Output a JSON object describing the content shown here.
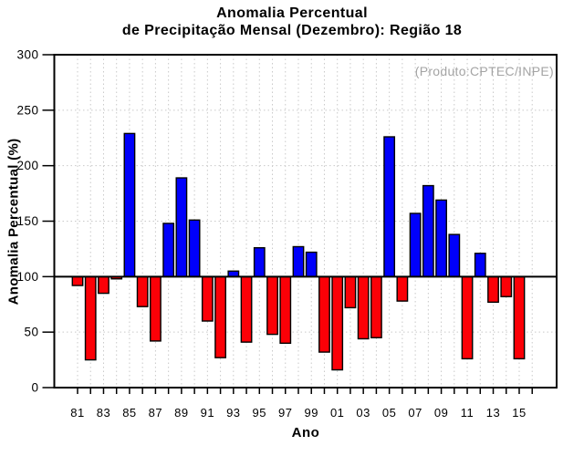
{
  "page": {
    "title_line1": "Anomalia Percentual",
    "title_line2": "de Precipitação Mensal (Dezembro): Região 18"
  },
  "chart_data": {
    "type": "bar",
    "title": "Anomalia Percentual de Precipitação Mensal (Dezembro): Região 18",
    "title_line1": "Anomalia Percentual",
    "title_line2": "de Precipitação Mensal (Dezembro): Região 18",
    "annotation": "(Produto:CPTEC/INPE)",
    "xlabel": "Ano",
    "ylabel": "Anomalia Percentual (%)",
    "ylim": [
      0,
      300
    ],
    "ytick_step": 50,
    "y_tick_labels": [
      "0",
      "50",
      "100",
      "150",
      "200",
      "250",
      "300"
    ],
    "baseline": 100,
    "grid": true,
    "legend": "none",
    "x_tick_labels": [
      "81",
      "83",
      "85",
      "87",
      "89",
      "91",
      "93",
      "95",
      "97",
      "99",
      "01",
      "03",
      "05",
      "07",
      "09",
      "11",
      "13",
      "15"
    ],
    "years": [
      "81",
      "82",
      "83",
      "84",
      "85",
      "86",
      "87",
      "88",
      "89",
      "90",
      "91",
      "92",
      "93",
      "94",
      "95",
      "96",
      "97",
      "98",
      "99",
      "00",
      "01",
      "02",
      "03",
      "04",
      "05",
      "06",
      "07",
      "08",
      "09",
      "10",
      "11",
      "12",
      "13",
      "14",
      "15"
    ],
    "values": [
      92,
      25,
      85,
      98,
      229,
      73,
      42,
      148,
      189,
      151,
      60,
      27,
      105,
      41,
      126,
      48,
      40,
      127,
      122,
      32,
      16,
      72,
      44,
      45,
      226,
      78,
      157,
      182,
      169,
      138,
      26,
      121,
      77,
      82,
      26
    ],
    "colors": {
      "above_baseline": "#0000FB",
      "below_baseline": "#FB0007",
      "bar_border": "#000000",
      "grid": "#C9C9C9",
      "axis": "#000000",
      "annotation_text": "#A4A4A4"
    }
  }
}
